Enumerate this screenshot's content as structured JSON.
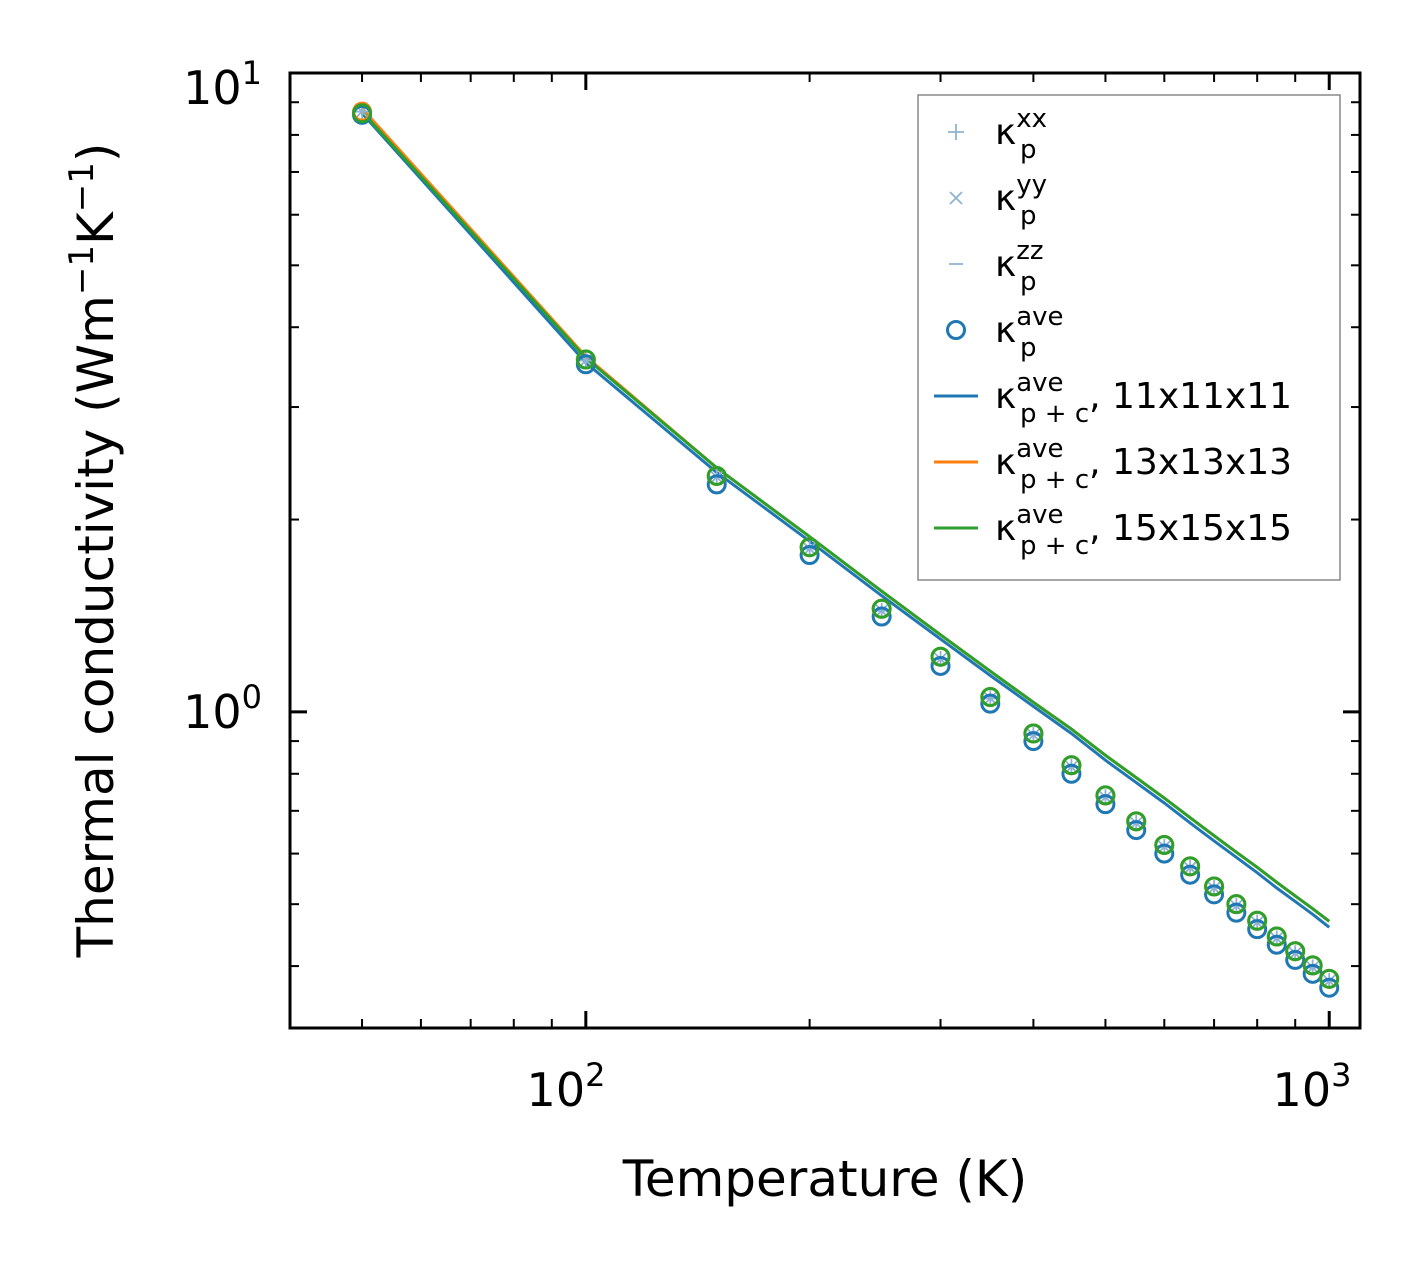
{
  "chart_data": {
    "type": "scatter",
    "title": "",
    "xlabel": "Temperature (K)",
    "ylabel": "Thermal conductivity",
    "ylabel_unit": {
      "open": "(Wm",
      "exp1": "−1",
      "mid": "K",
      "exp2": "−1",
      "close": ")"
    },
    "xscale": "log",
    "yscale": "log",
    "xlim": [
      40,
      1100
    ],
    "ylim": [
      0.32,
      10
    ],
    "x_major_ticks": [
      {
        "value": 100,
        "base": "10",
        "exp": "2"
      },
      {
        "value": 1000,
        "base": "10",
        "exp": "3"
      }
    ],
    "y_major_ticks": [
      {
        "value": 1,
        "base": "10",
        "exp": "0"
      },
      {
        "value": 10,
        "base": "10",
        "exp": "1"
      }
    ],
    "grid": false,
    "legend_position": "top-right",
    "x": [
      50,
      100,
      150,
      200,
      250,
      300,
      350,
      400,
      450,
      500,
      550,
      600,
      650,
      700,
      750,
      800,
      850,
      900,
      950,
      1000
    ],
    "series": [
      {
        "name": "kp_xx",
        "kind": "plus",
        "color": "#8fb3d3",
        "values": [
          8.7,
          3.55,
          2.33,
          1.8,
          1.44,
          1.21,
          1.05,
          0.92,
          0.82,
          0.735,
          0.67,
          0.615,
          0.57,
          0.53,
          0.497,
          0.468,
          0.442,
          0.419,
          0.398,
          0.379
        ]
      },
      {
        "name": "kp_yy",
        "kind": "cross",
        "color": "#8fb3d3",
        "values": [
          8.7,
          3.55,
          2.33,
          1.8,
          1.44,
          1.21,
          1.05,
          0.92,
          0.82,
          0.735,
          0.67,
          0.615,
          0.57,
          0.53,
          0.497,
          0.468,
          0.442,
          0.419,
          0.398,
          0.379
        ]
      },
      {
        "name": "kp_zz",
        "kind": "dash",
        "color": "#8fb3d3",
        "values": [
          8.7,
          3.55,
          2.33,
          1.8,
          1.44,
          1.21,
          1.05,
          0.92,
          0.82,
          0.735,
          0.67,
          0.615,
          0.57,
          0.53,
          0.497,
          0.468,
          0.442,
          0.419,
          0.398,
          0.379
        ]
      },
      {
        "name": "kp_ave 11x11x11",
        "kind": "circle",
        "color": "#1f77b4",
        "values": [
          8.6,
          3.5,
          2.27,
          1.76,
          1.41,
          1.18,
          1.03,
          0.9,
          0.8,
          0.717,
          0.653,
          0.6,
          0.556,
          0.518,
          0.485,
          0.457,
          0.432,
          0.409,
          0.389,
          0.37
        ]
      },
      {
        "name": "kp_ave 13x13x13",
        "kind": "circle",
        "color": "#ff7f0e",
        "values": [
          8.7,
          3.56,
          2.34,
          1.81,
          1.45,
          1.22,
          1.055,
          0.925,
          0.825,
          0.74,
          0.674,
          0.619,
          0.573,
          0.533,
          0.5,
          0.471,
          0.445,
          0.422,
          0.401,
          0.382
        ]
      },
      {
        "name": "kp_ave 15x15x15",
        "kind": "circle",
        "color": "#2ca02c",
        "values": [
          8.65,
          3.56,
          2.34,
          1.81,
          1.45,
          1.22,
          1.055,
          0.925,
          0.825,
          0.74,
          0.674,
          0.619,
          0.573,
          0.533,
          0.5,
          0.471,
          0.445,
          0.422,
          0.401,
          0.382
        ]
      },
      {
        "name": "kpc_ave 11x11x11",
        "kind": "line",
        "color": "#1f77b4",
        "values": [
          8.65,
          3.52,
          2.37,
          1.85,
          1.52,
          1.3,
          1.14,
          1.02,
          0.925,
          0.84,
          0.775,
          0.72,
          0.67,
          0.628,
          0.592,
          0.56,
          0.53,
          0.505,
          0.482,
          0.46
        ]
      },
      {
        "name": "kpc_ave 13x13x13",
        "kind": "line",
        "color": "#ff7f0e",
        "values": [
          8.8,
          3.6,
          2.41,
          1.88,
          1.545,
          1.32,
          1.158,
          1.035,
          0.94,
          0.855,
          0.789,
          0.733,
          0.683,
          0.64,
          0.603,
          0.571,
          0.541,
          0.515,
          0.492,
          0.47
        ]
      },
      {
        "name": "kpc_ave 15x15x15",
        "kind": "line",
        "color": "#2ca02c",
        "values": [
          8.7,
          3.58,
          2.41,
          1.88,
          1.545,
          1.32,
          1.158,
          1.035,
          0.94,
          0.855,
          0.789,
          0.733,
          0.683,
          0.64,
          0.603,
          0.571,
          0.541,
          0.515,
          0.492,
          0.47
        ]
      }
    ],
    "legend": [
      {
        "marker": "plus",
        "color": "#8fb3d3",
        "sym": "κ",
        "sup": "xx",
        "sub": "p",
        "suffix": ""
      },
      {
        "marker": "cross",
        "color": "#8fb3d3",
        "sym": "κ",
        "sup": "yy",
        "sub": "p",
        "suffix": ""
      },
      {
        "marker": "dash",
        "color": "#8fb3d3",
        "sym": "κ",
        "sup": "zz",
        "sub": "p",
        "suffix": ""
      },
      {
        "marker": "circle",
        "color": "#1f77b4",
        "sym": "κ",
        "sup": "ave",
        "sub": "p",
        "suffix": ""
      },
      {
        "marker": "line",
        "color": "#1f77b4",
        "sym": "κ",
        "sup": "ave",
        "sub": "p + c",
        "suffix": ", 11x11x11"
      },
      {
        "marker": "line",
        "color": "#ff7f0e",
        "sym": "κ",
        "sup": "ave",
        "sub": "p + c",
        "suffix": ", 13x13x13"
      },
      {
        "marker": "line",
        "color": "#2ca02c",
        "sym": "κ",
        "sup": "ave",
        "sub": "p + c",
        "suffix": ", 15x15x15"
      }
    ]
  }
}
